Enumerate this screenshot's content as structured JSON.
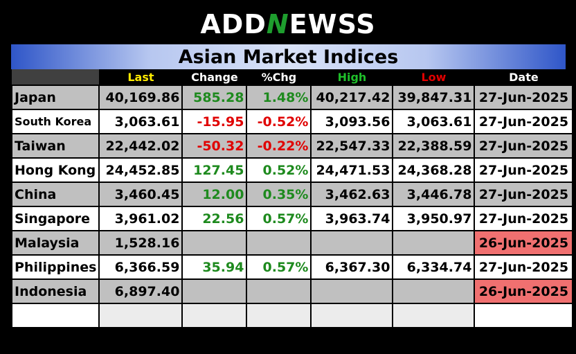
{
  "logo": {
    "prefix": "ADD",
    "n": "N",
    "suffix": "EWSS"
  },
  "title": "Asian Market Indices",
  "columns": [
    "Last",
    "Change",
    "%Chg",
    "High",
    "Low",
    "Date"
  ],
  "rows": [
    {
      "name": "Japan",
      "last": "40,169.86",
      "change": "585.28",
      "pct": "1.48%",
      "high": "40,217.42",
      "low": "39,847.31",
      "date": "27-Jun-2025"
    },
    {
      "name": "South Korea",
      "last": "3,063.61",
      "change": "-15.95",
      "pct": "-0.52%",
      "high": "3,093.56",
      "low": "3,063.61",
      "date": "27-Jun-2025"
    },
    {
      "name": "Taiwan",
      "last": "22,442.02",
      "change": "-50.32",
      "pct": "-0.22%",
      "high": "22,547.33",
      "low": "22,388.59",
      "date": "27-Jun-2025"
    },
    {
      "name": "Hong Kong",
      "last": "24,452.85",
      "change": "127.45",
      "pct": "0.52%",
      "high": "24,471.53",
      "low": "24,368.28",
      "date": "27-Jun-2025"
    },
    {
      "name": "China",
      "last": "3,460.45",
      "change": "12.00",
      "pct": "0.35%",
      "high": "3,462.63",
      "low": "3,446.78",
      "date": "27-Jun-2025"
    },
    {
      "name": "Singapore",
      "last": "3,961.02",
      "change": "22.56",
      "pct": "0.57%",
      "high": "3,963.74",
      "low": "3,950.97",
      "date": "27-Jun-2025"
    },
    {
      "name": "Malaysia",
      "last": "1,528.16",
      "change": "",
      "pct": "",
      "high": "",
      "low": "",
      "date": "26-Jun-2025"
    },
    {
      "name": "Philippines",
      "last": "6,366.59",
      "change": "35.94",
      "pct": "0.57%",
      "high": "6,367.30",
      "low": "6,334.74",
      "date": "27-Jun-2025"
    },
    {
      "name": "Indonesia",
      "last": "6,897.40",
      "change": "",
      "pct": "",
      "high": "",
      "low": "",
      "date": "26-Jun-2025"
    }
  ],
  "colors": {
    "positive": "#1e8a1e",
    "negative": "#e00000",
    "stale_date": "#f07070"
  }
}
